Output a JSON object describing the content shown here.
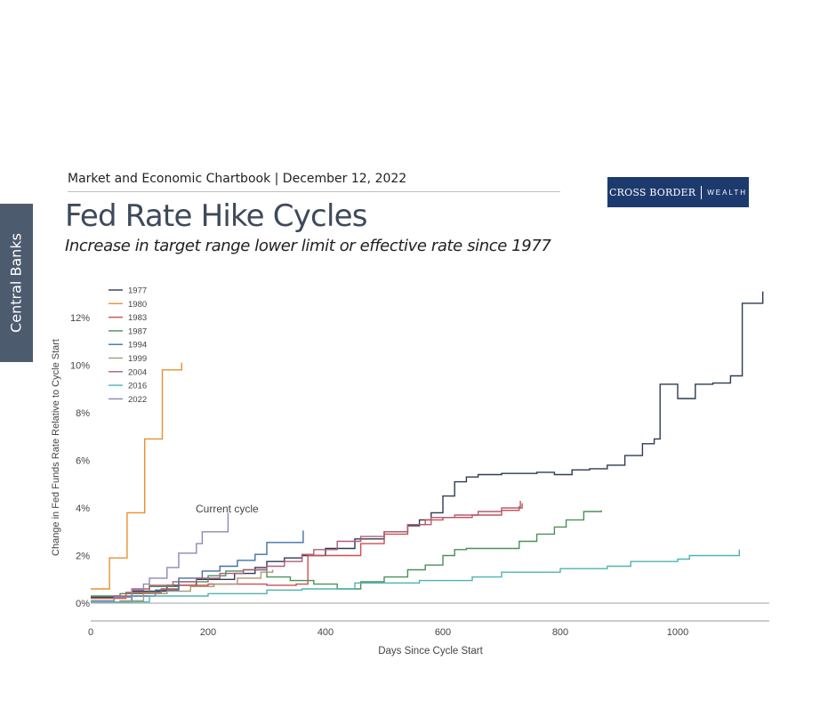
{
  "side_tab": {
    "label": "Central Banks"
  },
  "header": {
    "publication": "Market and Economic Chartbook | December 12, 2022"
  },
  "logo": {
    "word1": "CROSS BORDER",
    "word2": "WEALTH",
    "bg_color": "#1d3a6f"
  },
  "title": "Fed Rate Hike Cycles",
  "subtitle": "Increase in target range lower limit or effective rate since 1977",
  "chart_data": {
    "type": "line",
    "xlabel": "Days Since Cycle Start",
    "ylabel": "Change in Fed Funds Rate Relative to Cycle Start",
    "xlim": [
      0,
      1160
    ],
    "ylim": [
      -0.3,
      13.3
    ],
    "xticks": [
      0,
      200,
      400,
      600,
      800,
      1000
    ],
    "yticks": [
      0,
      2,
      4,
      6,
      8,
      10,
      12
    ],
    "ytick_suffix": "%",
    "grid": false,
    "legend_position": "top-left",
    "annotation": {
      "text": "Current cycle",
      "x": 178,
      "y": 3.95
    },
    "series": [
      {
        "name": "1977",
        "color": "#2d3b52",
        "points": [
          [
            0,
            0.25
          ],
          [
            50,
            0.25
          ],
          [
            70,
            0.5
          ],
          [
            110,
            0.5
          ],
          [
            130,
            0.75
          ],
          [
            170,
            0.75
          ],
          [
            180,
            1.0
          ],
          [
            230,
            1.0
          ],
          [
            245,
            1.25
          ],
          [
            280,
            1.5
          ],
          [
            300,
            1.75
          ],
          [
            330,
            1.9
          ],
          [
            360,
            2.0
          ],
          [
            400,
            2.3
          ],
          [
            450,
            2.7
          ],
          [
            500,
            3.0
          ],
          [
            540,
            3.25
          ],
          [
            560,
            3.5
          ],
          [
            580,
            3.8
          ],
          [
            600,
            4.5
          ],
          [
            620,
            5.1
          ],
          [
            640,
            5.3
          ],
          [
            660,
            5.4
          ],
          [
            700,
            5.45
          ],
          [
            760,
            5.5
          ],
          [
            790,
            5.4
          ],
          [
            820,
            5.6
          ],
          [
            850,
            5.65
          ],
          [
            880,
            5.8
          ],
          [
            910,
            6.2
          ],
          [
            940,
            6.7
          ],
          [
            960,
            6.9
          ],
          [
            970,
            9.2
          ],
          [
            1000,
            8.6
          ],
          [
            1030,
            9.2
          ],
          [
            1060,
            9.25
          ],
          [
            1090,
            9.55
          ],
          [
            1110,
            12.6
          ],
          [
            1140,
            12.6
          ],
          [
            1145,
            13.1
          ]
        ]
      },
      {
        "name": "1980",
        "color": "#e8902e",
        "points": [
          [
            0,
            0.6
          ],
          [
            30,
            0.6
          ],
          [
            32,
            1.9
          ],
          [
            60,
            1.9
          ],
          [
            62,
            3.8
          ],
          [
            90,
            3.8
          ],
          [
            92,
            6.9
          ],
          [
            120,
            6.9
          ],
          [
            122,
            9.8
          ],
          [
            150,
            9.8
          ],
          [
            155,
            10.1
          ]
        ]
      },
      {
        "name": "1983",
        "color": "#d14d4d",
        "points": [
          [
            0,
            0.2
          ],
          [
            40,
            0.2
          ],
          [
            60,
            0.45
          ],
          [
            120,
            0.6
          ],
          [
            150,
            0.75
          ],
          [
            200,
            0.8
          ],
          [
            300,
            0.75
          ],
          [
            350,
            0.8
          ],
          [
            370,
            2.0
          ],
          [
            420,
            2.0
          ],
          [
            460,
            2.5
          ],
          [
            500,
            2.9
          ],
          [
            540,
            3.3
          ],
          [
            570,
            3.5
          ],
          [
            600,
            3.6
          ],
          [
            650,
            3.7
          ],
          [
            700,
            3.9
          ],
          [
            730,
            4.0
          ],
          [
            735,
            4.2
          ]
        ]
      },
      {
        "name": "1987",
        "color": "#4a9158",
        "points": [
          [
            0,
            0.3
          ],
          [
            50,
            0.4
          ],
          [
            100,
            0.7
          ],
          [
            150,
            0.9
          ],
          [
            200,
            1.15
          ],
          [
            230,
            1.35
          ],
          [
            260,
            1.4
          ],
          [
            300,
            1.1
          ],
          [
            340,
            0.95
          ],
          [
            380,
            0.8
          ],
          [
            420,
            0.6
          ],
          [
            460,
            0.9
          ],
          [
            500,
            1.1
          ],
          [
            540,
            1.4
          ],
          [
            570,
            1.6
          ],
          [
            600,
            2.0
          ],
          [
            620,
            2.25
          ],
          [
            640,
            2.3
          ],
          [
            700,
            2.3
          ],
          [
            730,
            2.6
          ],
          [
            760,
            2.9
          ],
          [
            790,
            3.2
          ],
          [
            810,
            3.5
          ],
          [
            840,
            3.85
          ],
          [
            870,
            3.9
          ]
        ]
      },
      {
        "name": "1994",
        "color": "#3f71a8",
        "points": [
          [
            0,
            0.05
          ],
          [
            40,
            0.05
          ],
          [
            70,
            0.3
          ],
          [
            110,
            0.55
          ],
          [
            150,
            1.05
          ],
          [
            190,
            1.35
          ],
          [
            220,
            1.55
          ],
          [
            250,
            1.8
          ],
          [
            280,
            2.05
          ],
          [
            300,
            2.55
          ],
          [
            340,
            2.55
          ],
          [
            362,
            3.05
          ]
        ]
      },
      {
        "name": "1999",
        "color": "#a6987c",
        "points": [
          [
            0,
            0.05
          ],
          [
            50,
            0.1
          ],
          [
            90,
            0.4
          ],
          [
            130,
            0.5
          ],
          [
            170,
            0.7
          ],
          [
            210,
            0.8
          ],
          [
            250,
            1.05
          ],
          [
            290,
            1.3
          ],
          [
            310,
            1.4
          ]
        ]
      },
      {
        "name": "2004",
        "color": "#b05c78",
        "points": [
          [
            0,
            0.1
          ],
          [
            40,
            0.3
          ],
          [
            70,
            0.6
          ],
          [
            100,
            0.75
          ],
          [
            140,
            0.9
          ],
          [
            180,
            1.05
          ],
          [
            220,
            1.25
          ],
          [
            260,
            1.4
          ],
          [
            300,
            1.55
          ],
          [
            330,
            1.75
          ],
          [
            360,
            2.05
          ],
          [
            380,
            2.25
          ],
          [
            420,
            2.6
          ],
          [
            460,
            2.8
          ],
          [
            500,
            3.0
          ],
          [
            540,
            3.3
          ],
          [
            580,
            3.6
          ],
          [
            620,
            3.7
          ],
          [
            660,
            3.85
          ],
          [
            700,
            4.0
          ],
          [
            730,
            4.05
          ],
          [
            732,
            4.3
          ]
        ]
      },
      {
        "name": "2016",
        "color": "#4fb3b3",
        "points": [
          [
            0,
            0.05
          ],
          [
            100,
            0.3
          ],
          [
            200,
            0.4
          ],
          [
            300,
            0.55
          ],
          [
            360,
            0.6
          ],
          [
            450,
            0.85
          ],
          [
            560,
            0.95
          ],
          [
            650,
            1.1
          ],
          [
            700,
            1.3
          ],
          [
            800,
            1.45
          ],
          [
            880,
            1.55
          ],
          [
            920,
            1.75
          ],
          [
            1000,
            1.85
          ],
          [
            1020,
            2.0
          ],
          [
            1100,
            2.0
          ],
          [
            1105,
            2.25
          ]
        ]
      },
      {
        "name": "2022",
        "color": "#8c87b8",
        "points": [
          [
            0,
            0.1
          ],
          [
            40,
            0.25
          ],
          [
            70,
            0.55
          ],
          [
            90,
            0.8
          ],
          [
            100,
            1.05
          ],
          [
            130,
            1.5
          ],
          [
            150,
            2.1
          ],
          [
            180,
            2.5
          ],
          [
            190,
            3.0
          ],
          [
            230,
            3.0
          ],
          [
            234,
            3.8
          ]
        ]
      }
    ]
  }
}
